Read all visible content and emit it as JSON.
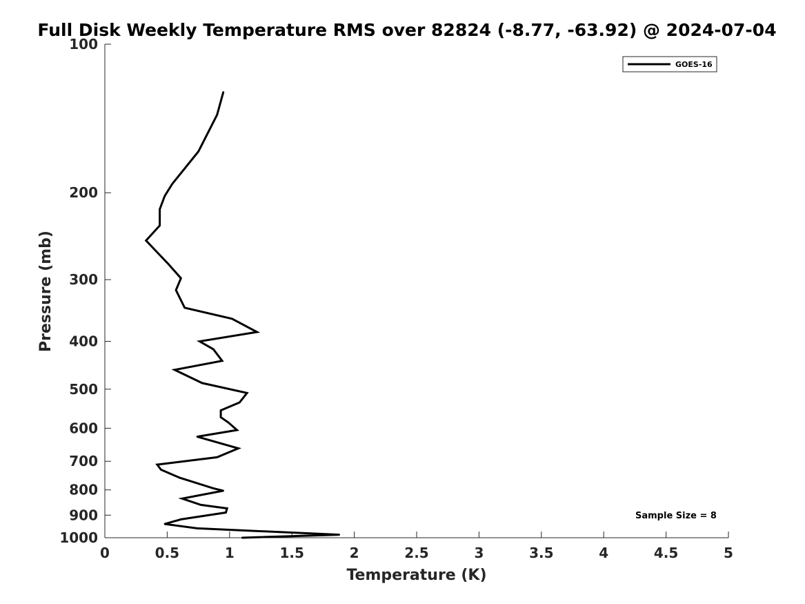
{
  "chart_data": {
    "type": "line",
    "title": "Full Disk Weekly Temperature RMS over 82824 (-8.77, -63.92) @ 2024-07-04",
    "xlabel": "Temperature (K)",
    "ylabel": "Pressure (mb)",
    "xlim": [
      0,
      5
    ],
    "ylim": [
      100,
      1000
    ],
    "y_scale": "log",
    "y_reversed": true,
    "x_ticks": [
      "0",
      "0.5",
      "1",
      "1.5",
      "2",
      "2.5",
      "3",
      "3.5",
      "4",
      "4.5",
      "5"
    ],
    "y_ticks": [
      "100",
      "200",
      "300",
      "400",
      "500",
      "600",
      "700",
      "800",
      "900",
      "1000"
    ],
    "grid": false,
    "legend_position": "top-right",
    "series": [
      {
        "name": "GOES-16",
        "color": "#000000",
        "x": [
          0.95,
          0.9,
          0.75,
          0.54,
          0.48,
          0.44,
          0.44,
          0.33,
          0.51,
          0.61,
          0.57,
          0.64,
          1.02,
          1.22,
          0.76,
          0.87,
          0.94,
          0.56,
          0.78,
          1.14,
          1.08,
          0.93,
          0.93,
          0.99,
          1.06,
          0.74,
          1.07,
          0.9,
          0.42,
          0.45,
          0.6,
          0.87,
          0.95,
          0.62,
          0.77,
          0.98,
          0.97,
          0.61,
          0.48,
          0.74,
          1.88,
          1.1
        ],
        "y": [
          125,
          139,
          165,
          192,
          203,
          216,
          233,
          250,
          279,
          298,
          315,
          342,
          360,
          383,
          400,
          415,
          438,
          457,
          486,
          509,
          532,
          552,
          570,
          584,
          605,
          624,
          659,
          687,
          711,
          728,
          756,
          794,
          803,
          833,
          858,
          872,
          889,
          918,
          938,
          957,
          986,
          1000
        ]
      }
    ],
    "annotation": "Sample Size = 8"
  }
}
